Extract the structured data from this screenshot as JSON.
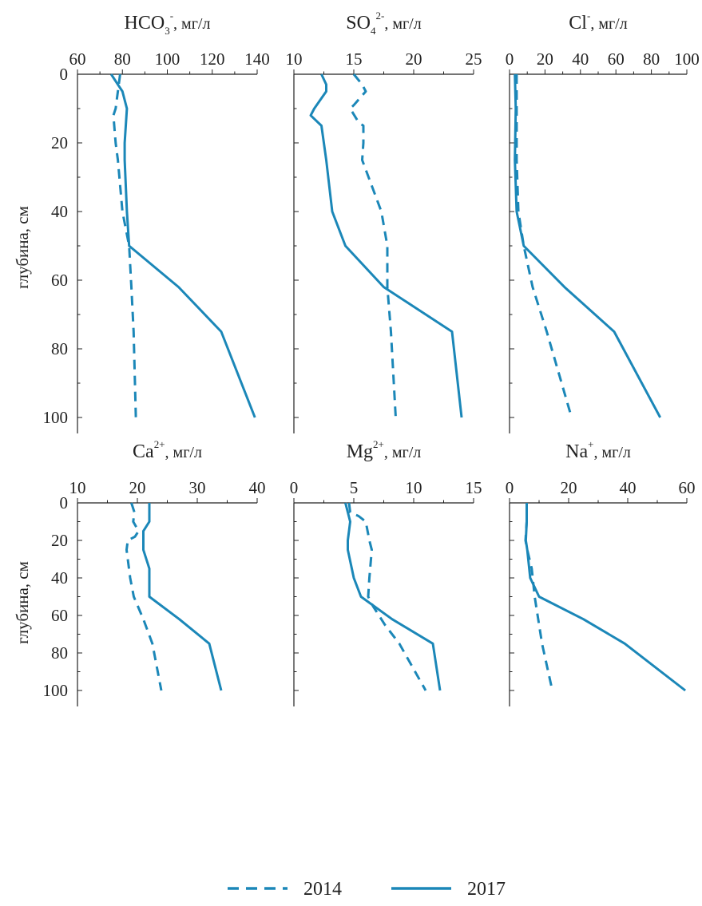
{
  "figure": {
    "ylabel": "глубина, см",
    "legend": {
      "placement": "bottom-center",
      "items": [
        {
          "label": "2014",
          "style": "dashed"
        },
        {
          "label": "2017",
          "style": "solid"
        }
      ]
    },
    "line_color": "#1b87b8"
  },
  "chart_data": [
    {
      "type": "line",
      "title": {
        "base": "HCO",
        "sub": "3",
        "sup": "-",
        "unit": ", мг/л"
      },
      "xlim": [
        60,
        140
      ],
      "xticks": [
        60,
        80,
        100,
        120,
        140
      ],
      "ylim": [
        0,
        100
      ],
      "yticks": [
        0,
        20,
        40,
        60,
        80,
        100
      ],
      "y_inverted": true,
      "series": [
        {
          "name": "2014",
          "points": [
            [
              79,
              0
            ],
            [
              77,
              10
            ],
            [
              76,
              12
            ],
            [
              77,
              20
            ],
            [
              78,
              25
            ],
            [
              80,
              40
            ],
            [
              83,
              50
            ],
            [
              84,
              62
            ],
            [
              85,
              75
            ],
            [
              86,
              100
            ]
          ]
        },
        {
          "name": "2017",
          "points": [
            [
              75,
              0
            ],
            [
              78,
              3
            ],
            [
              80,
              5
            ],
            [
              82,
              10
            ],
            [
              81,
              20
            ],
            [
              81,
              25
            ],
            [
              82,
              40
            ],
            [
              83,
              50
            ],
            [
              105,
              62
            ],
            [
              124,
              75
            ],
            [
              139,
              100
            ]
          ]
        }
      ]
    },
    {
      "type": "line",
      "title": {
        "base": "SO",
        "sub": "4",
        "sup": "2-",
        "unit": ", мг/л"
      },
      "xlim": [
        10,
        25
      ],
      "xticks": [
        10,
        15,
        20,
        25
      ],
      "ylim": [
        0,
        100
      ],
      "yticks": [
        0,
        20,
        40,
        60,
        80,
        100
      ],
      "y_inverted": true,
      "series": [
        {
          "name": "2014",
          "points": [
            [
              15,
              0
            ],
            [
              15.7,
              3
            ],
            [
              16,
              5
            ],
            [
              15,
              9
            ],
            [
              14.7,
              10
            ],
            [
              15.4,
              14
            ],
            [
              15.8,
              15
            ],
            [
              15.8,
              20
            ],
            [
              15.7,
              25
            ],
            [
              17.3,
              40
            ],
            [
              17.8,
              50
            ],
            [
              17.8,
              62
            ],
            [
              18.1,
              75
            ],
            [
              18.5,
              100
            ]
          ]
        },
        {
          "name": "2017",
          "points": [
            [
              12.3,
              0
            ],
            [
              12.7,
              3
            ],
            [
              12.7,
              5
            ],
            [
              11.7,
              10
            ],
            [
              11.4,
              12
            ],
            [
              12.3,
              15
            ],
            [
              12.7,
              25
            ],
            [
              13.2,
              40
            ],
            [
              14.3,
              50
            ],
            [
              17.5,
              62
            ],
            [
              23.2,
              75
            ],
            [
              24,
              100
            ]
          ]
        }
      ]
    },
    {
      "type": "line",
      "title": {
        "base": "Cl",
        "sub": "",
        "sup": "-",
        "unit": ", мг/л"
      },
      "xlim": [
        0,
        100
      ],
      "xticks": [
        0,
        20,
        40,
        60,
        80,
        100
      ],
      "ylim": [
        0,
        100
      ],
      "yticks": [
        0,
        20,
        40,
        60,
        80,
        100
      ],
      "y_inverted": true,
      "series": [
        {
          "name": "2014",
          "points": [
            [
              4,
              0
            ],
            [
              4,
              10
            ],
            [
              4,
              25
            ],
            [
              5,
              40
            ],
            [
              8,
              50
            ],
            [
              13,
              62
            ],
            [
              21,
              75
            ],
            [
              35,
              100
            ]
          ]
        },
        {
          "name": "2017",
          "points": [
            [
              3,
              0
            ],
            [
              3.5,
              10
            ],
            [
              3,
              25
            ],
            [
              4,
              40
            ],
            [
              8,
              50
            ],
            [
              31,
              62
            ],
            [
              59,
              75
            ],
            [
              85,
              100
            ]
          ]
        }
      ]
    },
    {
      "type": "line",
      "title": {
        "base": "Ca",
        "sub": "",
        "sup": "2+",
        "unit": ", мг/л"
      },
      "xlim": [
        10,
        40
      ],
      "xticks": [
        10,
        20,
        30,
        40
      ],
      "ylim": [
        0,
        100
      ],
      "yticks": [
        0,
        20,
        40,
        60,
        80,
        100
      ],
      "y_inverted": true,
      "series": [
        {
          "name": "2014",
          "points": [
            [
              19,
              0
            ],
            [
              19.5,
              5
            ],
            [
              19.3,
              10
            ],
            [
              20.2,
              15
            ],
            [
              19.6,
              18
            ],
            [
              18.4,
              20
            ],
            [
              18.2,
              25
            ],
            [
              18.8,
              40
            ],
            [
              19.4,
              50
            ],
            [
              21,
              62
            ],
            [
              22.5,
              75
            ],
            [
              24,
              100
            ]
          ]
        },
        {
          "name": "2017",
          "points": [
            [
              22,
              0
            ],
            [
              22,
              10
            ],
            [
              21,
              15
            ],
            [
              21,
              25
            ],
            [
              22,
              35
            ],
            [
              22,
              50
            ],
            [
              27,
              62
            ],
            [
              32,
              75
            ],
            [
              34,
              100
            ]
          ]
        }
      ]
    },
    {
      "type": "line",
      "title": {
        "base": "Mg",
        "sub": "",
        "sup": "2+",
        "unit": ", мг/л"
      },
      "xlim": [
        0,
        15
      ],
      "xticks": [
        0,
        5,
        10,
        15
      ],
      "ylim": [
        0,
        100
      ],
      "yticks": [
        0,
        20,
        40,
        60,
        80,
        100
      ],
      "y_inverted": true,
      "series": [
        {
          "name": "2014",
          "points": [
            [
              4.6,
              0
            ],
            [
              4.7,
              5
            ],
            [
              5.4,
              7
            ],
            [
              6,
              10
            ],
            [
              6.3,
              20
            ],
            [
              6.5,
              25
            ],
            [
              6.3,
              40
            ],
            [
              6.2,
              50
            ],
            [
              6.6,
              55
            ],
            [
              7.6,
              65
            ],
            [
              8.8,
              75
            ],
            [
              11,
              100
            ]
          ]
        },
        {
          "name": "2017",
          "points": [
            [
              4.3,
              0
            ],
            [
              4.5,
              5
            ],
            [
              4.7,
              10
            ],
            [
              4.5,
              20
            ],
            [
              4.5,
              25
            ],
            [
              5,
              40
            ],
            [
              5.6,
              50
            ],
            [
              8.2,
              62
            ],
            [
              11.6,
              75
            ],
            [
              12.2,
              100
            ]
          ]
        }
      ]
    },
    {
      "type": "line",
      "title": {
        "base": "Na",
        "sub": "",
        "sup": "+",
        "unit": ", мг/л"
      },
      "xlim": [
        0,
        60
      ],
      "xticks": [
        0,
        20,
        40,
        60
      ],
      "ylim": [
        0,
        100
      ],
      "yticks": [
        0,
        20,
        40,
        60,
        80,
        100
      ],
      "y_inverted": true,
      "series": [
        {
          "name": "2014",
          "points": [
            [
              5.8,
              0
            ],
            [
              5.8,
              10
            ],
            [
              5.4,
              20
            ],
            [
              6,
              25
            ],
            [
              7.5,
              35
            ],
            [
              8.5,
              50
            ],
            [
              9.7,
              62
            ],
            [
              11,
              75
            ],
            [
              14.5,
              100
            ]
          ]
        },
        {
          "name": "2017",
          "points": [
            [
              5.8,
              0
            ],
            [
              5.8,
              10
            ],
            [
              5.5,
              20
            ],
            [
              6,
              25
            ],
            [
              7,
              40
            ],
            [
              10,
              50
            ],
            [
              25,
              62
            ],
            [
              39,
              75
            ],
            [
              59.5,
              100
            ]
          ]
        }
      ]
    }
  ]
}
